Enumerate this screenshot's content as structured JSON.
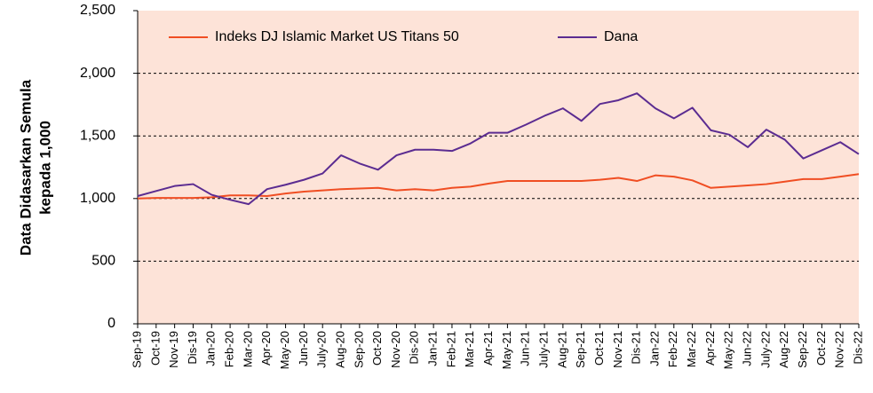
{
  "chart_data": {
    "type": "line",
    "ylabel": [
      "Data Didasarkan Semula",
      "kepada 1,000"
    ],
    "categories": [
      "Sep-19",
      "Oct-19",
      "Nov-19",
      "Dis-19",
      "Jan-20",
      "Feb-20",
      "Mar-20",
      "Apr-20",
      "May-20",
      "Jun-20",
      "July-20",
      "Aug-20",
      "Sep-20",
      "Oct-20",
      "Nov-20",
      "Dis-20",
      "Jan-21",
      "Feb-21",
      "Mar-21",
      "Apr-21",
      "May-21",
      "Jun-21",
      "July-21",
      "Aug-21",
      "Sep-21",
      "Oct-21",
      "Nov-21",
      "Dis-21",
      "Jan-22",
      "Feb-22",
      "Mar-22",
      "Apr-22",
      "May-22",
      "Jun-22",
      "July-22",
      "Aug-22",
      "Sep-22",
      "Oct-22",
      "Nov-22",
      "Dis-22"
    ],
    "series": [
      {
        "name": "Indeks DJ Islamic Market US Titans 50",
        "color": "#f04e23",
        "values": [
          1000,
          1005,
          1005,
          1005,
          1010,
          1025,
          1025,
          1020,
          1040,
          1055,
          1065,
          1075,
          1080,
          1085,
          1065,
          1075,
          1065,
          1085,
          1095,
          1120,
          1140,
          1140,
          1140,
          1140,
          1140,
          1150,
          1165,
          1140,
          1185,
          1175,
          1145,
          1085,
          1095,
          1105,
          1115,
          1135,
          1155,
          1155,
          1175,
          1195
        ]
      },
      {
        "name": "Dana",
        "color": "#5b2c91",
        "values": [
          1020,
          1060,
          1100,
          1115,
          1030,
          990,
          955,
          1075,
          1110,
          1150,
          1200,
          1345,
          1280,
          1230,
          1345,
          1390,
          1390,
          1380,
          1440,
          1525,
          1525,
          1590,
          1660,
          1720,
          1620,
          1755,
          1785,
          1840,
          1720,
          1640,
          1725,
          1545,
          1510,
          1410,
          1550,
          1470,
          1320,
          1385,
          1450,
          1355
        ]
      }
    ],
    "ylim": [
      0,
      2500
    ],
    "yticks": [
      0,
      500,
      {
        "value": 1000,
        "label": "1,000"
      },
      {
        "value": 1500,
        "label": "1,500"
      },
      {
        "value": 2000,
        "label": "2,000"
      },
      {
        "value": 2500,
        "label": "2,500"
      }
    ],
    "grid": true,
    "legend": "top",
    "background": "#fde3d8"
  }
}
